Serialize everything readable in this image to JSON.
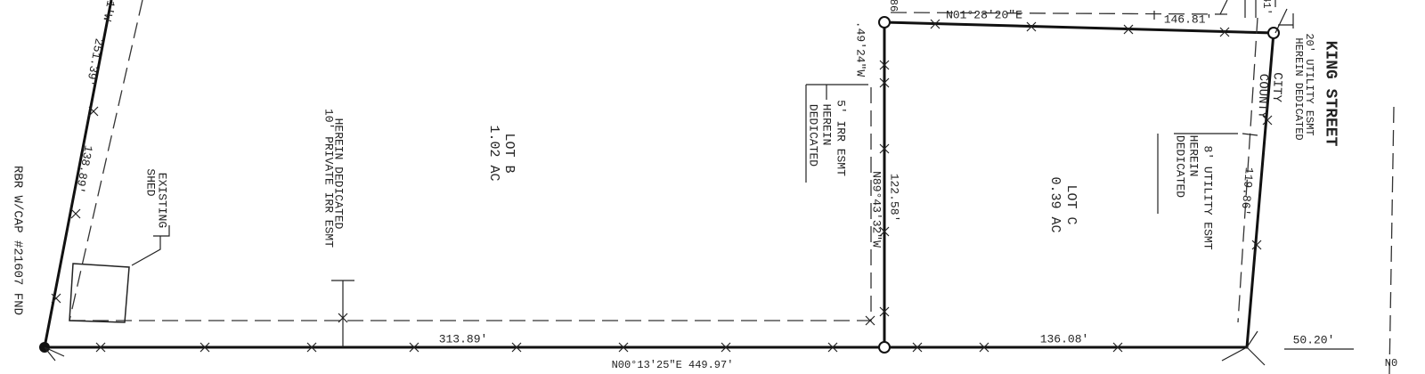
{
  "plat": {
    "monument": "RBR W/CAP #21607 FND",
    "west_partial": "1'W",
    "west_dist_1": "251.39'",
    "west_dist_2": "138.89'",
    "shed": [
      "EXISTING",
      "SHED"
    ],
    "irr_esmt_10": [
      "10' PRIVATE IRR ESMT",
      "HEREIN DEDICATED"
    ],
    "lot_b": [
      "LOT B",
      "1.02 AC"
    ],
    "south_dist_b": "313.89'",
    "south_bearing": "N00°13'25\"E  449.97'",
    "irr_esmt_5": [
      "5' IRR ESMT",
      "HEREIN",
      "DEDICATED"
    ],
    "mid_partial": "86",
    "mid_bearing_partial": ".49'24\"W",
    "mid_bearing": "N89°43'32\"W",
    "mid_dist": "122.58'",
    "north_bearing": "N01°28'20\"E",
    "north_dist": "146.81'",
    "lot_c": [
      "LOT C",
      "0.39 AC"
    ],
    "south_dist_c": "136.08'",
    "util_esmt_8": [
      "8' UTILITY ESMT",
      "HEREIN",
      "DEDICATED"
    ],
    "county": "COUNTY",
    "city": "CITY",
    "east_dist": "119.86'",
    "east_partial": "41'",
    "util_esmt_20": [
      "20' UTILITY ESMT",
      "HEREIN DEDICATED"
    ],
    "street": "KING STREET",
    "street_dist": "50.20'",
    "se_partial": "N0"
  }
}
